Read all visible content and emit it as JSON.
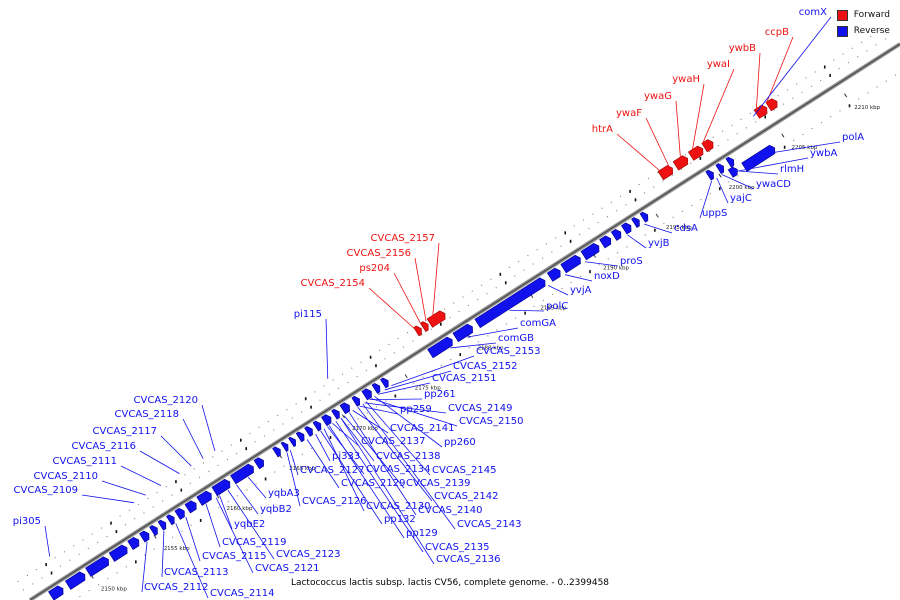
{
  "caption": "Lactococcus lactis subsp. lactis CV56, complete genome. - 0..2399458",
  "legend": {
    "forward_label": "Forward",
    "reverse_label": "Reverse",
    "forward_color": "#ee1111",
    "reverse_color": "#1111ee"
  },
  "genome_axis": {
    "tick_unit": "kbp",
    "tick_labels": [
      "2150 kbp",
      "2155 kbp",
      "2160 kbp",
      "2165 kbp",
      "2170 kbp",
      "2175 kbp",
      "2180 kbp",
      "2185 kbp",
      "2190 kbp",
      "2195 kbp",
      "2200 kbp",
      "2205 kbp",
      "2210 kbp"
    ]
  },
  "forward_genes": [
    "comX",
    "ccpB",
    "ywbB",
    "ywaI",
    "ywaH",
    "ywaG",
    "ywaF",
    "htrA",
    "CVCAS_2157",
    "CVCAS_2156",
    "ps204",
    "CVCAS_2154"
  ],
  "reverse_genes": [
    "polA",
    "ywbA",
    "rlmH",
    "ywaCD",
    "yajC",
    "uppS",
    "cdsA",
    "yvjB",
    "proS",
    "noxD",
    "yvjA",
    "polC",
    "comGA",
    "comGB",
    "CVCAS_2153",
    "CVCAS_2152",
    "CVCAS_2151",
    "pp261",
    "pp259",
    "CVCAS_2149",
    "CVCAS_2150",
    "CVCAS_2141",
    "pp260",
    "CVCAS_2137",
    "CVCAS_2138",
    "pi333",
    "CVCAS_2145",
    "CVCAS_2134",
    "CVCAS_2139",
    "CVCAS_2127",
    "CVCAS_2129",
    "CVCAS_2126",
    "CVCAS_2142",
    "CVCAS_2130",
    "CVCAS_2140",
    "pp132",
    "CVCAS_2143",
    "pp129",
    "CVCAS_2135",
    "CVCAS_2136",
    "yqbA3",
    "yqbB2",
    "yqbE2",
    "CVCAS_2119",
    "CVCAS_2123",
    "CVCAS_2115",
    "CVCAS_2121",
    "CVCAS_2113",
    "CVCAS_2112",
    "CVCAS_2114",
    "pi115",
    "CVCAS_2120",
    "CVCAS_2118",
    "CVCAS_2117",
    "CVCAS_2116",
    "CVCAS_2111",
    "CVCAS_2110",
    "CVCAS_2109",
    "pi305"
  ]
}
